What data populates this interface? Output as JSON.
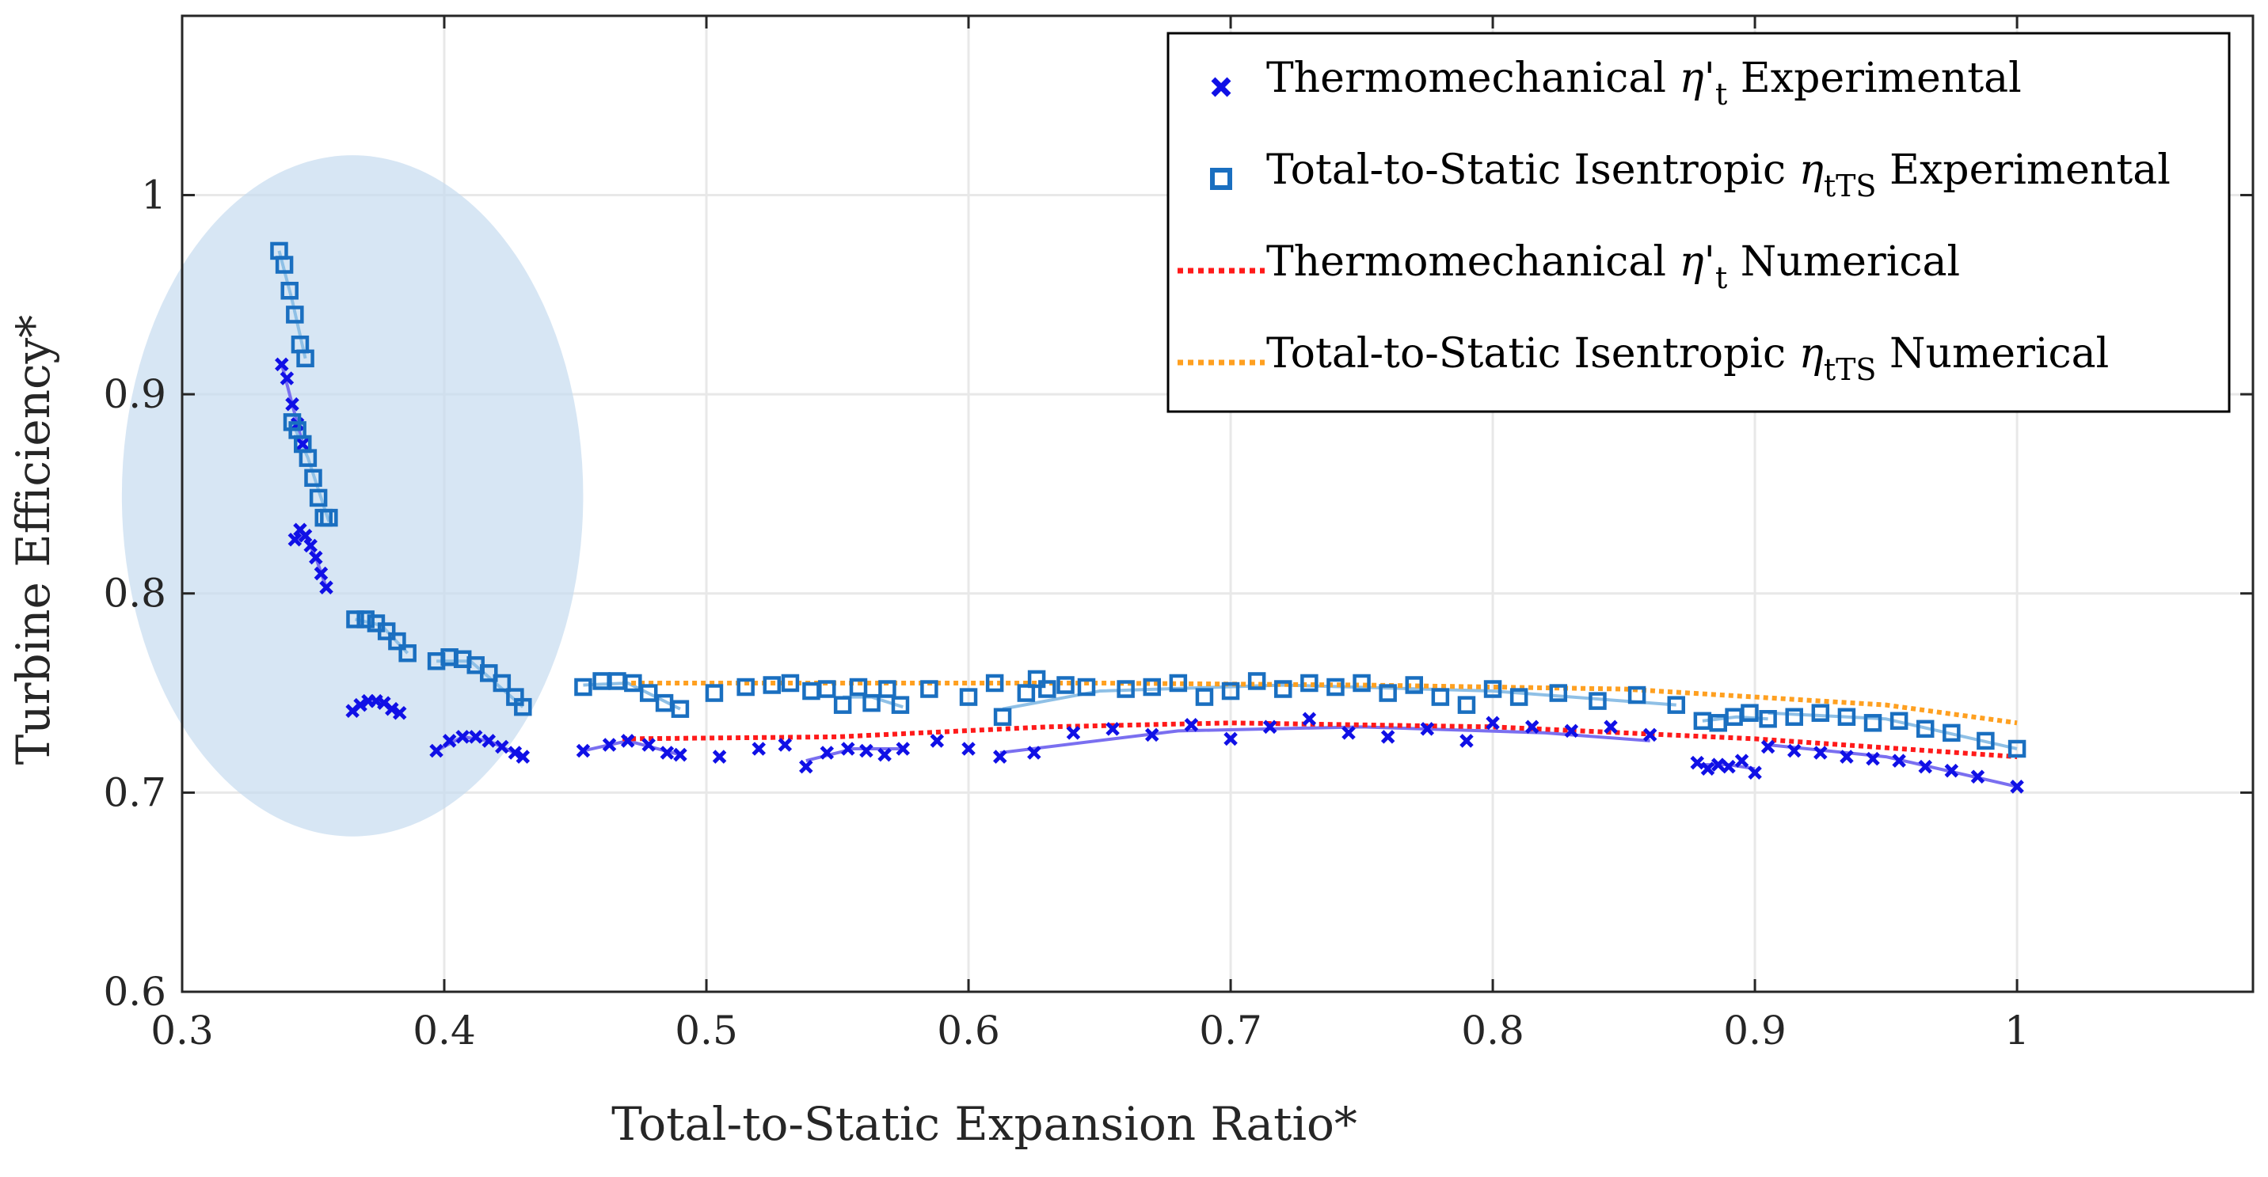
{
  "chart_data": {
    "type": "scatter",
    "title": "",
    "xlabel": "Total-to-Static Expansion Ratio*",
    "ylabel": "Turbine Efficiency*",
    "xlim": [
      0.3,
      1.09
    ],
    "ylim": [
      0.6,
      1.09
    ],
    "grid": true,
    "legend_position": "top-right",
    "x_ticks": [
      0.3,
      0.4,
      0.5,
      0.6,
      0.7,
      0.8,
      0.9,
      1.0
    ],
    "x_tick_labels": [
      "0.3",
      "0.4",
      "0.5",
      "0.6",
      "0.7",
      "0.8",
      "0.9",
      "1"
    ],
    "y_ticks": [
      0.6,
      0.7,
      0.8,
      0.9,
      1.0
    ],
    "y_tick_labels": [
      "0.6",
      "0.7",
      "0.8",
      "0.9",
      "1"
    ],
    "highlight_region": {
      "shape": "ellipse",
      "center": [
        0.365,
        0.849
      ],
      "semi_axis_x": 0.088,
      "semi_axis_y": 0.171,
      "color": "#c6dbef"
    },
    "legend": [
      {
        "base": "Thermomechanical ",
        "symbol": "η'",
        "sub": "t",
        "suffix": " Experimental",
        "marker": "x",
        "color": "#1010e6"
      },
      {
        "base": "Total-to-Static Isentropic ",
        "symbol": "η",
        "sub": "tTS",
        "suffix": " Experimental",
        "marker": "square",
        "color": "#1a6fc0"
      },
      {
        "base": "Thermomechanical ",
        "symbol": "η'",
        "sub": "t",
        "suffix": " Numerical",
        "marker": "dotted",
        "color": "#ff1a1a"
      },
      {
        "base": "Total-to-Static Isentropic ",
        "symbol": "η",
        "sub": "tTS",
        "suffix": " Numerical",
        "marker": "dotted",
        "color": "#ffa020"
      }
    ],
    "series": [
      {
        "name": "Thermomechanical η't Experimental",
        "marker": "x",
        "color": "#1010e6",
        "points": [
          [
            0.338,
            0.915
          ],
          [
            0.34,
            0.908
          ],
          [
            0.342,
            0.895
          ],
          [
            0.344,
            0.885
          ],
          [
            0.346,
            0.875
          ],
          [
            0.343,
            0.827
          ],
          [
            0.345,
            0.832
          ],
          [
            0.347,
            0.829
          ],
          [
            0.349,
            0.824
          ],
          [
            0.351,
            0.818
          ],
          [
            0.353,
            0.81
          ],
          [
            0.355,
            0.803
          ],
          [
            0.365,
            0.741
          ],
          [
            0.368,
            0.744
          ],
          [
            0.371,
            0.746
          ],
          [
            0.374,
            0.746
          ],
          [
            0.377,
            0.745
          ],
          [
            0.38,
            0.742
          ],
          [
            0.383,
            0.74
          ],
          [
            0.397,
            0.721
          ],
          [
            0.402,
            0.726
          ],
          [
            0.407,
            0.728
          ],
          [
            0.412,
            0.728
          ],
          [
            0.417,
            0.726
          ],
          [
            0.422,
            0.723
          ],
          [
            0.427,
            0.72
          ],
          [
            0.43,
            0.718
          ],
          [
            0.453,
            0.721
          ],
          [
            0.463,
            0.724
          ],
          [
            0.47,
            0.726
          ],
          [
            0.478,
            0.724
          ],
          [
            0.485,
            0.72
          ],
          [
            0.49,
            0.719
          ],
          [
            0.505,
            0.718
          ],
          [
            0.52,
            0.722
          ],
          [
            0.53,
            0.724
          ],
          [
            0.538,
            0.713
          ],
          [
            0.546,
            0.72
          ],
          [
            0.554,
            0.722
          ],
          [
            0.561,
            0.721
          ],
          [
            0.568,
            0.719
          ],
          [
            0.575,
            0.722
          ],
          [
            0.588,
            0.726
          ],
          [
            0.6,
            0.722
          ],
          [
            0.612,
            0.718
          ],
          [
            0.625,
            0.72
          ],
          [
            0.64,
            0.73
          ],
          [
            0.655,
            0.732
          ],
          [
            0.67,
            0.729
          ],
          [
            0.685,
            0.734
          ],
          [
            0.7,
            0.727
          ],
          [
            0.715,
            0.733
          ],
          [
            0.73,
            0.737
          ],
          [
            0.745,
            0.73
          ],
          [
            0.76,
            0.728
          ],
          [
            0.775,
            0.732
          ],
          [
            0.79,
            0.726
          ],
          [
            0.8,
            0.735
          ],
          [
            0.815,
            0.733
          ],
          [
            0.83,
            0.731
          ],
          [
            0.845,
            0.733
          ],
          [
            0.86,
            0.729
          ],
          [
            0.878,
            0.715
          ],
          [
            0.882,
            0.712
          ],
          [
            0.886,
            0.714
          ],
          [
            0.89,
            0.713
          ],
          [
            0.895,
            0.716
          ],
          [
            0.9,
            0.71
          ],
          [
            0.905,
            0.723
          ],
          [
            0.915,
            0.721
          ],
          [
            0.925,
            0.72
          ],
          [
            0.935,
            0.718
          ],
          [
            0.945,
            0.717
          ],
          [
            0.955,
            0.716
          ],
          [
            0.965,
            0.713
          ],
          [
            0.975,
            0.711
          ],
          [
            0.985,
            0.708
          ],
          [
            1.0,
            0.703
          ]
        ]
      },
      {
        "name": "Total-to-Static Isentropic ηtTS Experimental",
        "marker": "square",
        "color": "#1a6fc0",
        "points": [
          [
            0.337,
            0.972
          ],
          [
            0.339,
            0.965
          ],
          [
            0.341,
            0.952
          ],
          [
            0.343,
            0.94
          ],
          [
            0.345,
            0.925
          ],
          [
            0.347,
            0.918
          ],
          [
            0.342,
            0.886
          ],
          [
            0.344,
            0.882
          ],
          [
            0.346,
            0.875
          ],
          [
            0.348,
            0.868
          ],
          [
            0.35,
            0.858
          ],
          [
            0.352,
            0.848
          ],
          [
            0.354,
            0.838
          ],
          [
            0.356,
            0.838
          ],
          [
            0.366,
            0.787
          ],
          [
            0.37,
            0.787
          ],
          [
            0.374,
            0.785
          ],
          [
            0.378,
            0.781
          ],
          [
            0.382,
            0.776
          ],
          [
            0.386,
            0.77
          ],
          [
            0.397,
            0.766
          ],
          [
            0.402,
            0.768
          ],
          [
            0.407,
            0.767
          ],
          [
            0.412,
            0.764
          ],
          [
            0.417,
            0.76
          ],
          [
            0.422,
            0.755
          ],
          [
            0.427,
            0.748
          ],
          [
            0.43,
            0.743
          ],
          [
            0.453,
            0.753
          ],
          [
            0.46,
            0.756
          ],
          [
            0.466,
            0.756
          ],
          [
            0.472,
            0.755
          ],
          [
            0.478,
            0.75
          ],
          [
            0.484,
            0.745
          ],
          [
            0.49,
            0.742
          ],
          [
            0.503,
            0.75
          ],
          [
            0.515,
            0.753
          ],
          [
            0.525,
            0.754
          ],
          [
            0.532,
            0.755
          ],
          [
            0.54,
            0.751
          ],
          [
            0.546,
            0.752
          ],
          [
            0.552,
            0.744
          ],
          [
            0.558,
            0.753
          ],
          [
            0.563,
            0.745
          ],
          [
            0.569,
            0.752
          ],
          [
            0.574,
            0.744
          ],
          [
            0.585,
            0.752
          ],
          [
            0.6,
            0.748
          ],
          [
            0.61,
            0.755
          ],
          [
            0.613,
            0.738
          ],
          [
            0.622,
            0.75
          ],
          [
            0.626,
            0.757
          ],
          [
            0.63,
            0.752
          ],
          [
            0.637,
            0.754
          ],
          [
            0.645,
            0.753
          ],
          [
            0.66,
            0.752
          ],
          [
            0.67,
            0.753
          ],
          [
            0.68,
            0.755
          ],
          [
            0.69,
            0.748
          ],
          [
            0.7,
            0.751
          ],
          [
            0.71,
            0.756
          ],
          [
            0.72,
            0.752
          ],
          [
            0.73,
            0.755
          ],
          [
            0.74,
            0.753
          ],
          [
            0.75,
            0.755
          ],
          [
            0.76,
            0.75
          ],
          [
            0.77,
            0.754
          ],
          [
            0.78,
            0.748
          ],
          [
            0.79,
            0.744
          ],
          [
            0.8,
            0.752
          ],
          [
            0.81,
            0.748
          ],
          [
            0.825,
            0.75
          ],
          [
            0.84,
            0.746
          ],
          [
            0.855,
            0.749
          ],
          [
            0.87,
            0.744
          ],
          [
            0.88,
            0.736
          ],
          [
            0.886,
            0.735
          ],
          [
            0.892,
            0.738
          ],
          [
            0.898,
            0.74
          ],
          [
            0.905,
            0.737
          ],
          [
            0.915,
            0.738
          ],
          [
            0.925,
            0.74
          ],
          [
            0.935,
            0.738
          ],
          [
            0.945,
            0.735
          ],
          [
            0.955,
            0.736
          ],
          [
            0.965,
            0.732
          ],
          [
            0.975,
            0.73
          ],
          [
            0.988,
            0.726
          ],
          [
            1.0,
            0.722
          ]
        ]
      },
      {
        "name": "Thermomechanical η't Numerical",
        "marker": "dotted",
        "color": "#ff1a1a",
        "x": [
          0.468,
          0.55,
          0.63,
          0.7,
          0.8,
          0.9,
          1.0
        ],
        "y": [
          0.727,
          0.728,
          0.733,
          0.735,
          0.733,
          0.727,
          0.718
        ]
      },
      {
        "name": "Total-to-Static Isentropic ηtTS Numerical",
        "marker": "dotted",
        "color": "#ffa020",
        "x": [
          0.468,
          0.55,
          0.65,
          0.75,
          0.85,
          0.95,
          1.0
        ],
        "y": [
          0.755,
          0.755,
          0.755,
          0.754,
          0.752,
          0.744,
          0.735
        ]
      }
    ],
    "fit_lines": [
      {
        "color": "#7a6ff0",
        "x": [
          0.338,
          0.342,
          0.346
        ],
        "y": [
          0.915,
          0.895,
          0.875
        ]
      },
      {
        "color": "#7a6ff0",
        "x": [
          0.343,
          0.347,
          0.351,
          0.355
        ],
        "y": [
          0.827,
          0.829,
          0.818,
          0.803
        ]
      },
      {
        "color": "#7a6ff0",
        "x": [
          0.365,
          0.371,
          0.377,
          0.383
        ],
        "y": [
          0.741,
          0.746,
          0.745,
          0.74
        ]
      },
      {
        "color": "#7a6ff0",
        "x": [
          0.397,
          0.407,
          0.417,
          0.43
        ],
        "y": [
          0.721,
          0.728,
          0.726,
          0.718
        ]
      },
      {
        "color": "#7a6ff0",
        "x": [
          0.453,
          0.47,
          0.49
        ],
        "y": [
          0.721,
          0.726,
          0.719
        ]
      },
      {
        "color": "#7a6ff0",
        "x": [
          0.538,
          0.556,
          0.575
        ],
        "y": [
          0.716,
          0.722,
          0.722
        ]
      },
      {
        "color": "#7a6ff0",
        "x": [
          0.612,
          0.68,
          0.75,
          0.82,
          0.86
        ],
        "y": [
          0.72,
          0.731,
          0.733,
          0.73,
          0.726
        ]
      },
      {
        "color": "#7a6ff0",
        "x": [
          0.878,
          0.89,
          0.9
        ],
        "y": [
          0.714,
          0.714,
          0.712
        ]
      },
      {
        "color": "#7a6ff0",
        "x": [
          0.905,
          0.95,
          1.0
        ],
        "y": [
          0.724,
          0.718,
          0.703
        ]
      },
      {
        "color": "#8fc0e6",
        "x": [
          0.337,
          0.342,
          0.347
        ],
        "y": [
          0.972,
          0.947,
          0.918
        ]
      },
      {
        "color": "#8fc0e6",
        "x": [
          0.342,
          0.348,
          0.356
        ],
        "y": [
          0.886,
          0.868,
          0.836
        ]
      },
      {
        "color": "#8fc0e6",
        "x": [
          0.366,
          0.376,
          0.386
        ],
        "y": [
          0.787,
          0.784,
          0.77
        ]
      },
      {
        "color": "#8fc0e6",
        "x": [
          0.397,
          0.41,
          0.43
        ],
        "y": [
          0.766,
          0.766,
          0.743
        ]
      },
      {
        "color": "#8fc0e6",
        "x": [
          0.453,
          0.47,
          0.49
        ],
        "y": [
          0.754,
          0.755,
          0.742
        ]
      },
      {
        "color": "#8fc0e6",
        "x": [
          0.552,
          0.563,
          0.575
        ],
        "y": [
          0.748,
          0.748,
          0.743
        ]
      },
      {
        "color": "#8fc0e6",
        "x": [
          0.613,
          0.65,
          0.72,
          0.8,
          0.87
        ],
        "y": [
          0.742,
          0.751,
          0.754,
          0.751,
          0.744
        ]
      },
      {
        "color": "#8fc0e6",
        "x": [
          0.88,
          0.893,
          0.905
        ],
        "y": [
          0.736,
          0.738,
          0.737
        ]
      },
      {
        "color": "#8fc0e6",
        "x": [
          0.905,
          0.95,
          1.0
        ],
        "y": [
          0.74,
          0.737,
          0.722
        ]
      }
    ]
  }
}
